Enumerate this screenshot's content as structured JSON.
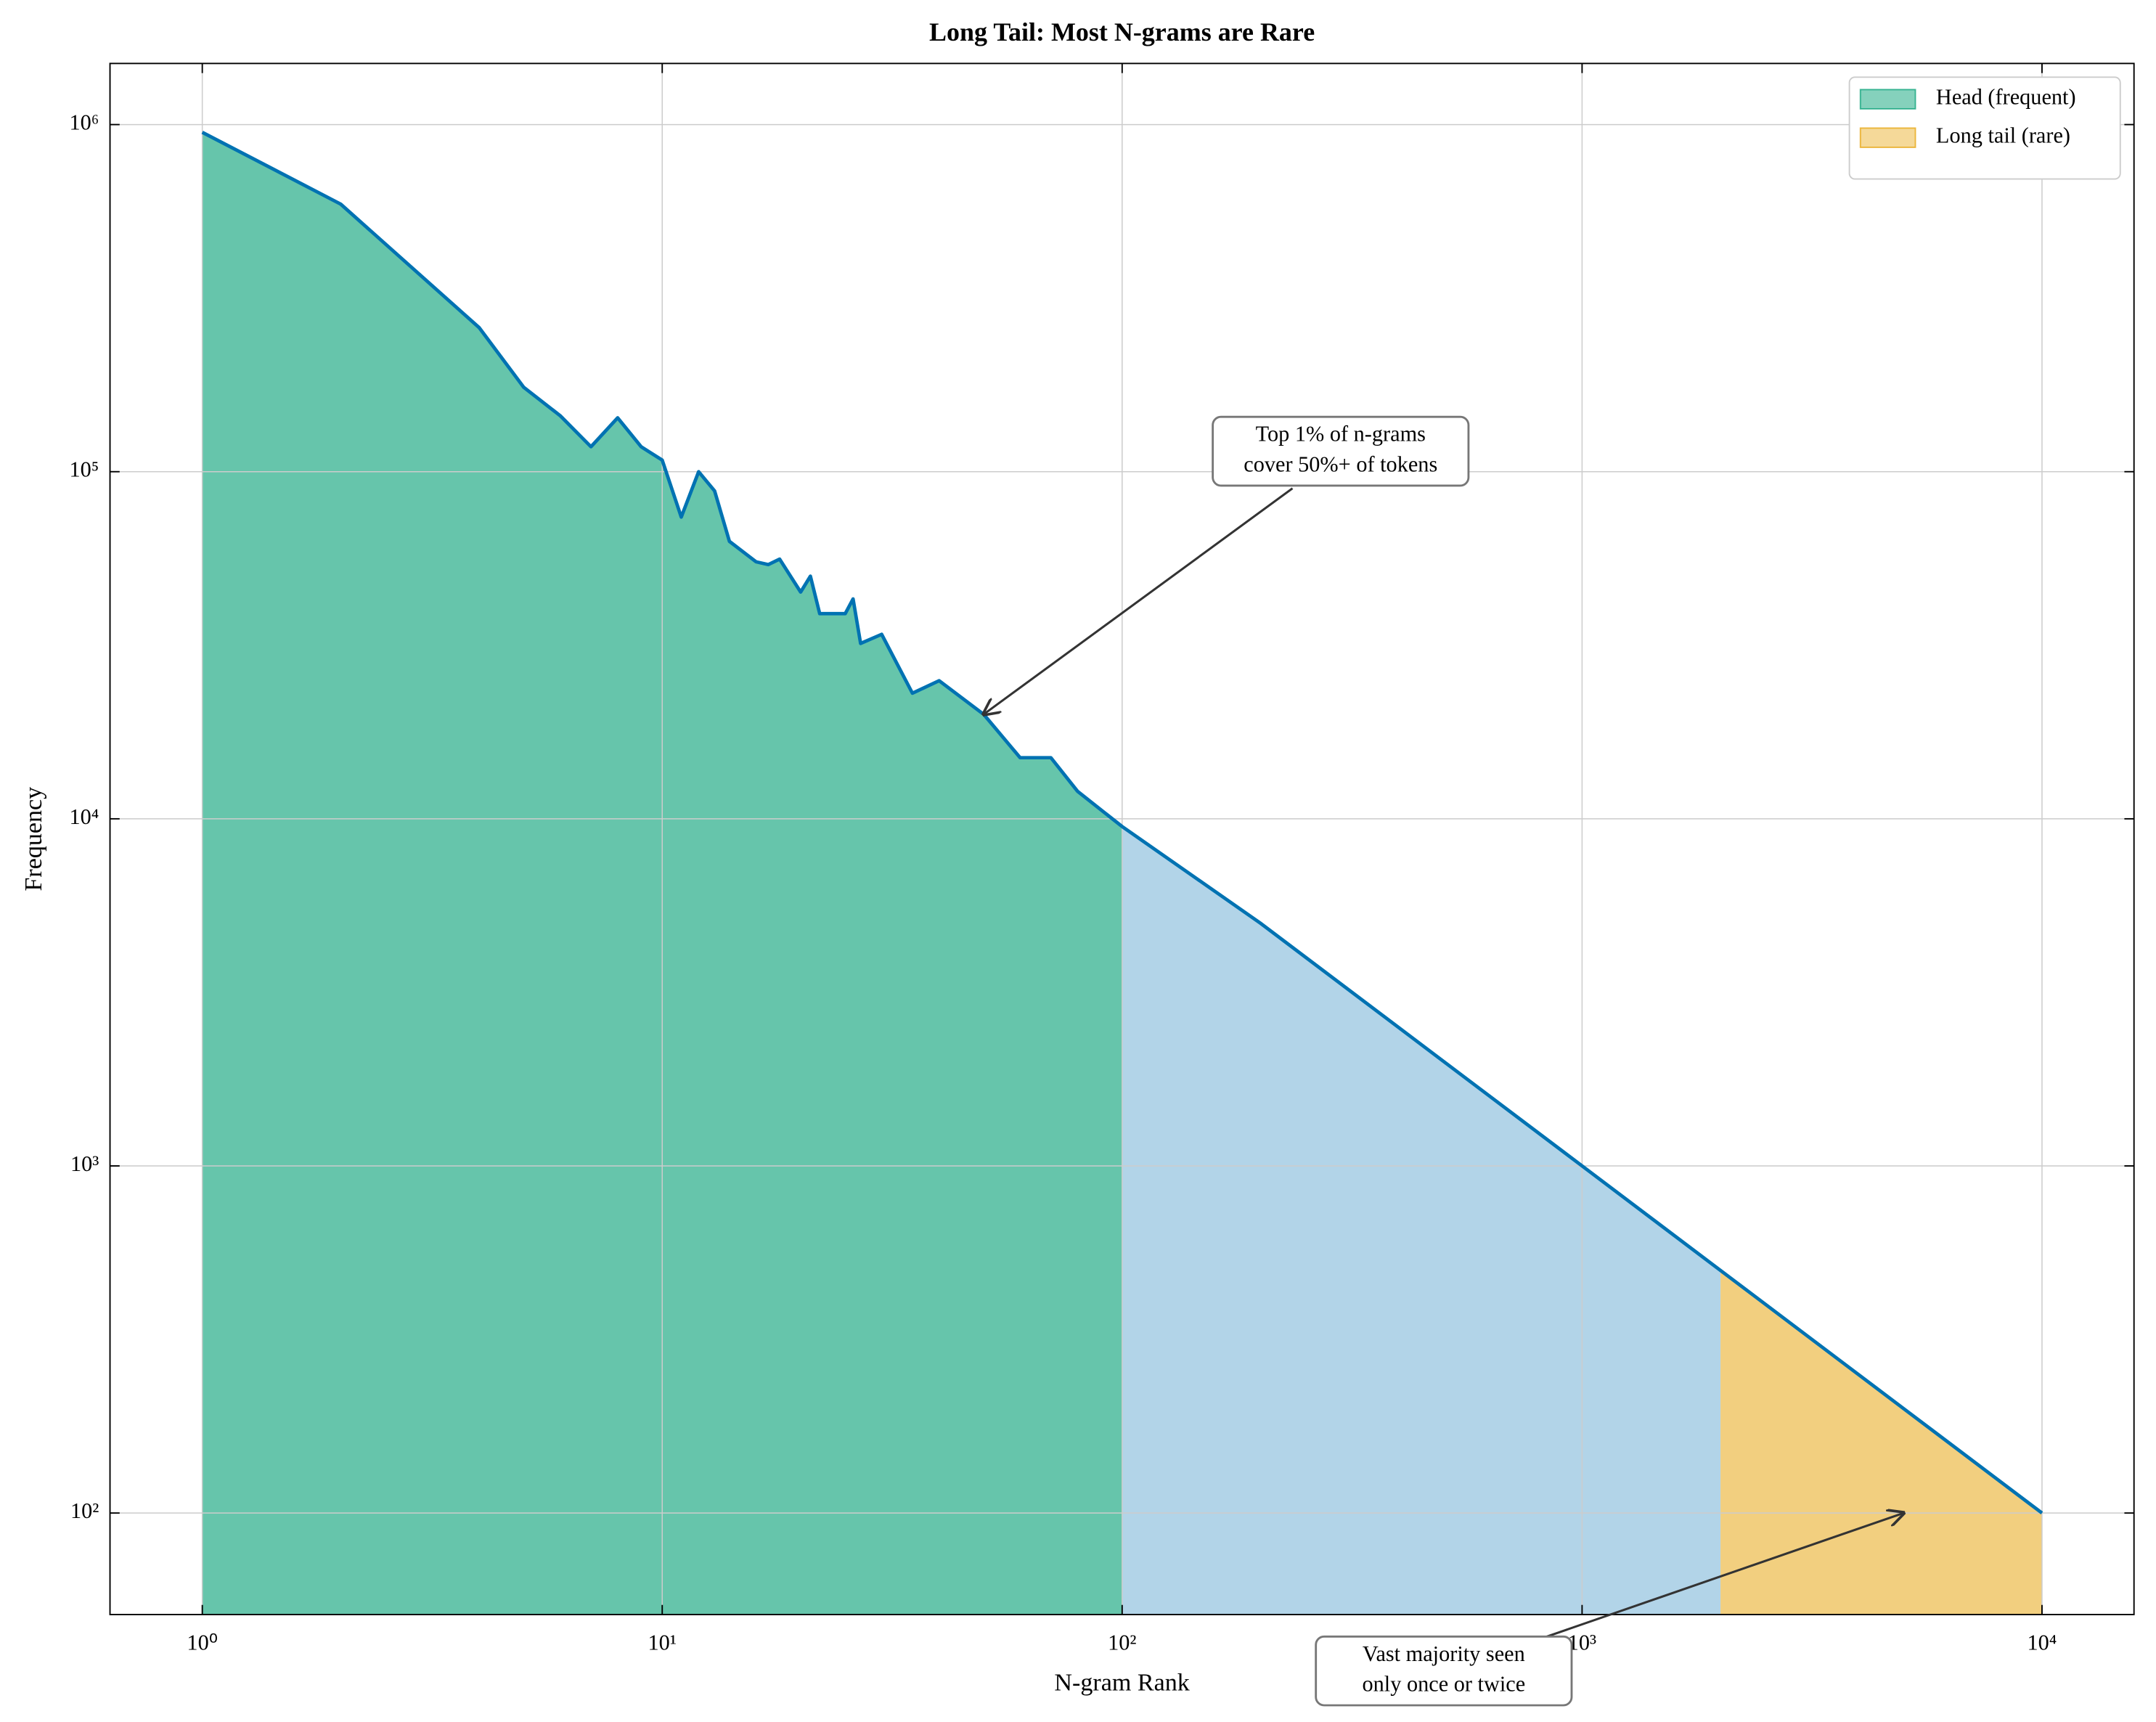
{
  "chart_data": {
    "type": "line",
    "title": "Long Tail: Most N-grams are Rare",
    "xlabel": "N-gram Rank",
    "ylabel": "Frequency",
    "xscale": "log",
    "yscale": "log",
    "grid": true,
    "legend": "upper right",
    "x": [
      1,
      2,
      4,
      5,
      6,
      7,
      8,
      9,
      10,
      11,
      12,
      13,
      14,
      16,
      17,
      18,
      20,
      21,
      22,
      25,
      26,
      27,
      30,
      35,
      40,
      50,
      60,
      70,
      80,
      100,
      200,
      500,
      1000,
      2000,
      5000,
      10000
    ],
    "series": [
      {
        "color": "#0072b2",
        "values": [
          950000,
          590000,
          260000,
          175000,
          145000,
          118000,
          143000,
          118000,
          108000,
          74000,
          100000,
          88000,
          63000,
          55000,
          54000,
          56000,
          45000,
          50000,
          39000,
          39000,
          43000,
          32000,
          34000,
          23000,
          25000,
          20000,
          15000,
          15000,
          12000,
          9500,
          5000,
          2000,
          1000,
          500,
          200,
          100
        ]
      }
    ],
    "fills": [
      {
        "name": "Head (frequent)",
        "color": "#009e73",
        "opacity": 0.6,
        "range": [
          1,
          100
        ]
      },
      {
        "color": "#0072b2",
        "opacity": 0.3,
        "range": [
          100,
          2000
        ]
      },
      {
        "name": "Long tail (rare)",
        "color": "#e69f00",
        "opacity": 0.5,
        "range": [
          2000,
          10000
        ]
      }
    ],
    "annotations": [
      {
        "text": [
          "Top 1% of n-grams",
          "cover 50%+ of tokens"
        ],
        "xy": [
          50,
          20000
        ]
      },
      {
        "text": [
          "Vast majority seen",
          "only once or twice"
        ],
        "xy": [
          5000,
          100
        ]
      }
    ],
    "xlim": [
      0.63,
      15850
    ],
    "ylim": [
      51,
      1500000
    ],
    "xticks": [
      {
        "value": 1,
        "label": "10⁰"
      },
      {
        "value": 10,
        "label": "10¹"
      },
      {
        "value": 100,
        "label": "10²"
      },
      {
        "value": 1000,
        "label": "10³"
      },
      {
        "value": 10000,
        "label": "10⁴"
      }
    ],
    "yticks": [
      {
        "value": 100,
        "label": "10²"
      },
      {
        "value": 1000,
        "label": "10³"
      },
      {
        "value": 10000,
        "label": "10⁴"
      },
      {
        "value": 100000,
        "label": "10⁵"
      },
      {
        "value": 1000000,
        "label": "10⁶"
      }
    ]
  }
}
